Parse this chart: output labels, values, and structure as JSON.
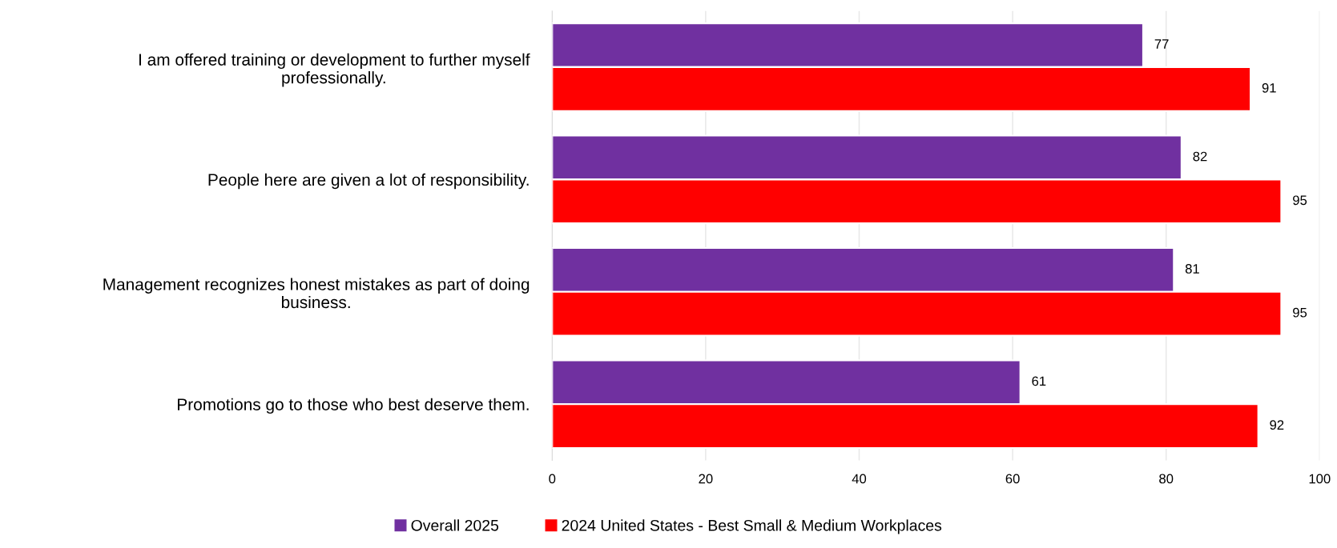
{
  "chart_data": {
    "type": "bar",
    "orientation": "horizontal",
    "categories": [
      "I am offered training or development to further myself\nprofessionally.",
      "People here are given a lot of responsibility.",
      "Management recognizes honest mistakes as part of doing\nbusiness.",
      "Promotions go to those who best deserve them."
    ],
    "series": [
      {
        "name": "Overall 2025",
        "color": "#7030a0",
        "values": [
          77,
          82,
          81,
          61
        ]
      },
      {
        "name": "2024 United States - Best Small & Medium Workplaces",
        "color": "#ff0000",
        "values": [
          91,
          95,
          95,
          92
        ]
      }
    ],
    "xlim": [
      0,
      100
    ],
    "xticks": [
      0,
      20,
      40,
      60,
      80,
      100
    ],
    "grid": "x",
    "legend": "bottom",
    "data_labels": true
  }
}
